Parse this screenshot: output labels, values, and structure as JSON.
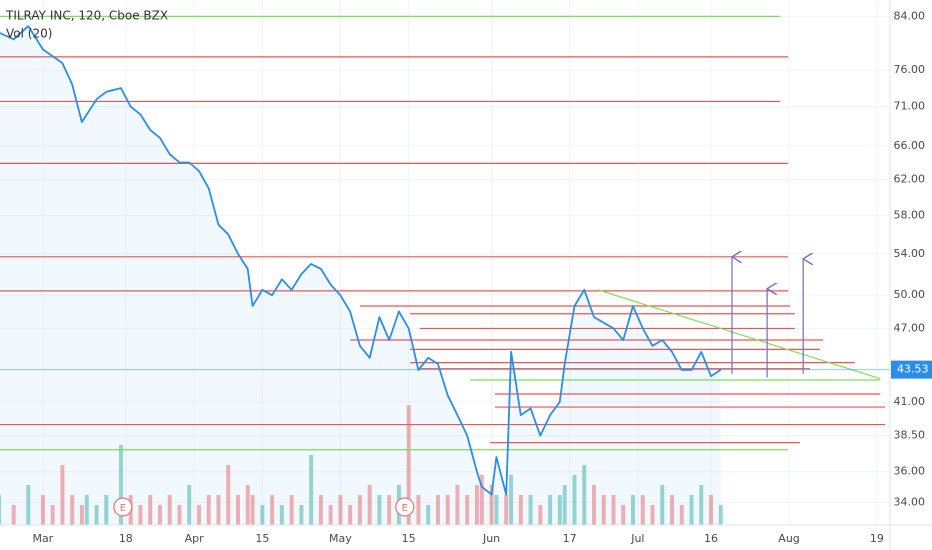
{
  "chart_data": {
    "type": "line",
    "title": "TILRAY INC, 120, Cboe BZX",
    "volume_label": "Vol (20)",
    "scale": "log",
    "grid": true,
    "color": "#2a8ee6",
    "x": [
      51,
      54,
      57,
      60,
      62,
      64,
      66,
      68,
      69,
      71,
      73,
      76,
      78,
      80,
      82,
      84,
      86,
      88,
      90,
      92,
      94,
      96,
      98,
      100,
      102,
      103,
      105,
      107,
      109,
      111,
      113,
      115,
      117,
      119,
      121,
      123,
      125,
      127,
      129,
      131,
      133,
      135,
      137,
      139,
      141,
      143,
      145,
      147,
      149,
      150,
      152,
      153,
      155,
      156,
      158,
      160,
      162,
      164,
      166,
      167,
      169,
      171,
      173,
      175,
      177,
      179,
      181,
      183,
      185,
      187,
      189,
      191,
      193,
      195,
      197,
      199
    ],
    "values": [
      81.5,
      80.5,
      82.5,
      79,
      78,
      77,
      74,
      69,
      70,
      72,
      73,
      73.5,
      71,
      70,
      68,
      67,
      65,
      64,
      64,
      63,
      61,
      57,
      56,
      54,
      52.5,
      49,
      50.5,
      50,
      51.5,
      50.5,
      52,
      53,
      52.5,
      51,
      50,
      48.5,
      45.5,
      44.5,
      48,
      46,
      48.5,
      47,
      43.5,
      44.5,
      44,
      41.5,
      40,
      38.5,
      36,
      35,
      34.5,
      37,
      34.5,
      45,
      40,
      40.5,
      38.5,
      40,
      41,
      44,
      49,
      50.5,
      48,
      47.5,
      47,
      46,
      49,
      47,
      45.5,
      46,
      45,
      43.5,
      43.5,
      45,
      43,
      43.53
    ],
    "volume": [
      3,
      2,
      4,
      3,
      2,
      6,
      3,
      2,
      3,
      2,
      3,
      8,
      3,
      2,
      3,
      2,
      3,
      2,
      4,
      2,
      3,
      3,
      6,
      3,
      4,
      3,
      2,
      3,
      2,
      3,
      2,
      7,
      3,
      2,
      3,
      2,
      3,
      4,
      3,
      3,
      4,
      12,
      3,
      2,
      3,
      3,
      4,
      3,
      4,
      5,
      4,
      3,
      3,
      5,
      3,
      3,
      2,
      3,
      3,
      4,
      5,
      6,
      4,
      3,
      3,
      2,
      3,
      3,
      2,
      4,
      3,
      2,
      3,
      4,
      3,
      2
    ],
    "last_price": 43.53,
    "xlim": [
      51.2,
      233.7
    ],
    "ylim": [
      32.6,
      86.6
    ],
    "xticks": [
      {
        "value": 60,
        "label": "Mar"
      },
      {
        "value": 77,
        "label": "18"
      },
      {
        "value": 91,
        "label": "Apr"
      },
      {
        "value": 105,
        "label": "15"
      },
      {
        "value": 121,
        "label": "May"
      },
      {
        "value": 135,
        "label": "15"
      },
      {
        "value": 152,
        "label": "Jun"
      },
      {
        "value": 168,
        "label": "17"
      },
      {
        "value": 182,
        "label": "Jul"
      },
      {
        "value": 197,
        "label": "16"
      },
      {
        "value": 213,
        "label": "Aug"
      },
      {
        "value": 231,
        "label": "19"
      }
    ],
    "yticks": [
      {
        "value": 34,
        "label": "34.00"
      },
      {
        "value": 36,
        "label": "36.00"
      },
      {
        "value": 38.5,
        "label": "38.50"
      },
      {
        "value": 41,
        "label": "41.00"
      },
      {
        "value": 47,
        "label": "47.00"
      },
      {
        "value": 50,
        "label": "50.00"
      },
      {
        "value": 54,
        "label": "54.00"
      },
      {
        "value": 58,
        "label": "58.00"
      },
      {
        "value": 62,
        "label": "62.00"
      },
      {
        "value": 66,
        "label": "66.00"
      },
      {
        "value": 71,
        "label": "71.00"
      },
      {
        "value": 76,
        "label": "76.00"
      },
      {
        "value": 84,
        "label": "84.00"
      }
    ],
    "events": [
      {
        "x": 76.4,
        "label": "E"
      },
      {
        "x": 134.2,
        "label": "E"
      }
    ],
    "levels": [
      {
        "value": 84,
        "color": "#7ee05a",
        "from": 51.2,
        "to": 211.2
      },
      {
        "value": 77.9,
        "color": "#ef5350",
        "from": 51.2,
        "to": 212.8
      },
      {
        "value": 71.7,
        "color": "#ef5350",
        "from": 51.2,
        "to": 211.2
      },
      {
        "value": 63.9,
        "color": "#ef5350",
        "from": 51.2,
        "to": 212.8
      },
      {
        "value": 53.7,
        "color": "#ef5350",
        "from": 51.2,
        "to": 212.8
      },
      {
        "value": 50.4,
        "color": "#ef5350",
        "from": 51.2,
        "to": 212.8
      },
      {
        "value": 49,
        "color": "#ef5350",
        "from": 125,
        "to": 213.2
      },
      {
        "value": 48.3,
        "color": "#ef5350",
        "from": 135.3,
        "to": 214.2
      },
      {
        "value": 47,
        "color": "#ef5350",
        "from": 137.3,
        "to": 214.2
      },
      {
        "value": 46,
        "color": "#ef5350",
        "from": 123,
        "to": 220
      },
      {
        "value": 45.2,
        "color": "#ef5350",
        "from": 135.3,
        "to": 219.4
      },
      {
        "value": 44.1,
        "color": "#ef5350",
        "from": 135.3,
        "to": 226.5
      },
      {
        "value": 43.6,
        "color": "#ef5350",
        "from": 137.3,
        "to": 217.3
      },
      {
        "value": 42.7,
        "color": "#7ee05a",
        "from": 147.6,
        "to": 231.7
      },
      {
        "value": 41.6,
        "color": "#ef5350",
        "from": 152.7,
        "to": 231.7
      },
      {
        "value": 40.6,
        "color": "#ef5350",
        "from": 152.7,
        "to": 232.7
      },
      {
        "value": 39.3,
        "color": "#ef5350",
        "from": 51.2,
        "to": 232.7
      },
      {
        "value": 38,
        "color": "#ef5350",
        "from": 151.7,
        "to": 215.2
      },
      {
        "value": 37.5,
        "color": "#7ee05a",
        "from": 51.2,
        "to": 212.8
      }
    ],
    "trendline": {
      "color": "#7ee05a",
      "x": [
        173.8,
        231.7
      ],
      "values": [
        50.5,
        42.8
      ]
    },
    "arrows": [
      {
        "x": 201.3,
        "from": 43.2,
        "to": 53.7
      },
      {
        "x": 208.5,
        "from": 42.9,
        "to": 50.6
      },
      {
        "x": 215.9,
        "from": 43.2,
        "to": 53.5
      }
    ]
  }
}
